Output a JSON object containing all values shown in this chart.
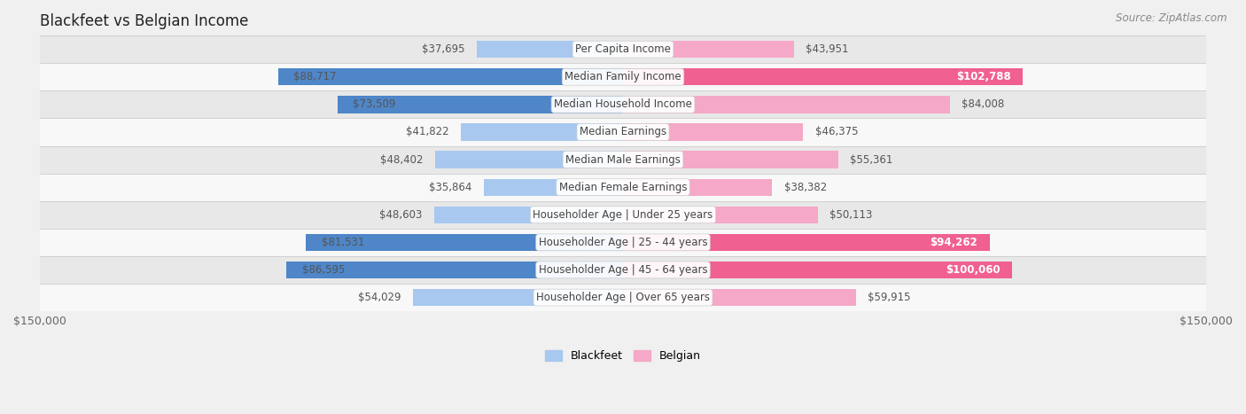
{
  "title": "Blackfeet vs Belgian Income",
  "source": "Source: ZipAtlas.com",
  "categories": [
    "Per Capita Income",
    "Median Family Income",
    "Median Household Income",
    "Median Earnings",
    "Median Male Earnings",
    "Median Female Earnings",
    "Householder Age | Under 25 years",
    "Householder Age | 25 - 44 years",
    "Householder Age | 45 - 64 years",
    "Householder Age | Over 65 years"
  ],
  "blackfeet": [
    37695,
    88717,
    73509,
    41822,
    48402,
    35864,
    48603,
    81531,
    86595,
    54029
  ],
  "belgian": [
    43951,
    102788,
    84008,
    46375,
    55361,
    38382,
    50113,
    94262,
    100060,
    59915
  ],
  "blackfeet_color_light": "#a8c8ef",
  "blackfeet_color_dark": "#4e86c8",
  "belgian_color_light": "#f5a8c8",
  "belgian_color_dark": "#f06090",
  "xlim": 150000,
  "bg_color": "#f0f0f0",
  "row_color_even": "#e8e8e8",
  "row_color_odd": "#f8f8f8",
  "bar_height": 0.62,
  "label_fontsize": 8.5,
  "title_fontsize": 12,
  "source_fontsize": 8.5,
  "axis_label_fontsize": 9,
  "category_fontsize": 8.5,
  "dark_threshold_blackfeet": 70000,
  "dark_threshold_belgian": 90000
}
